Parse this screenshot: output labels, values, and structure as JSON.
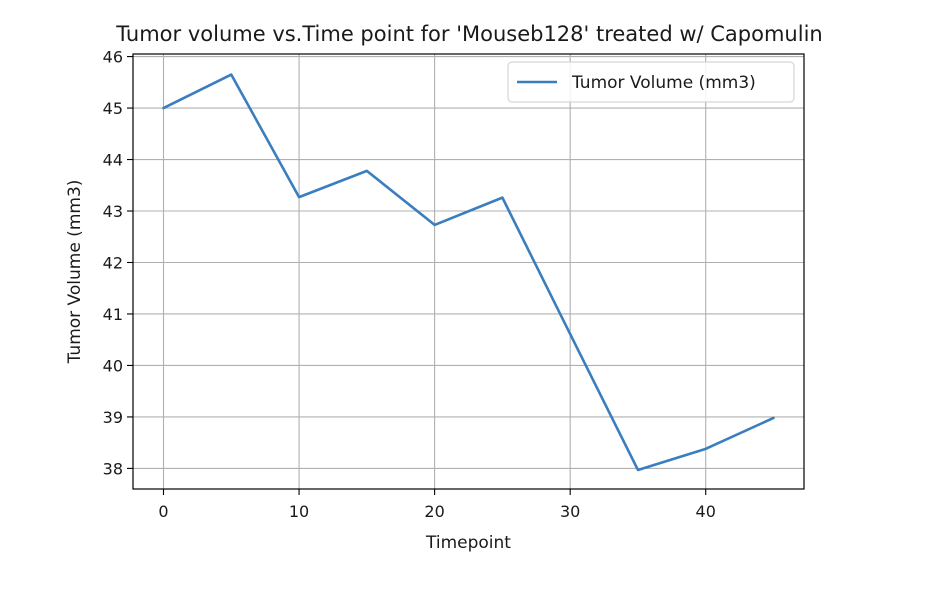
{
  "chart_data": {
    "type": "line",
    "title": "Tumor volume vs.Time point for 'Mouseb128' treated w/ Capomulin",
    "xlabel": "Timepoint",
    "ylabel": "Tumor Volume (mm3)",
    "xlim": [
      -2.25,
      47.25
    ],
    "ylim": [
      37.6,
      46.05
    ],
    "x_ticks": [
      0,
      10,
      20,
      30,
      40
    ],
    "y_ticks": [
      38,
      39,
      40,
      41,
      42,
      43,
      44,
      45,
      46
    ],
    "grid": true,
    "legend_position": "top-right",
    "x": [
      0,
      5,
      10,
      15,
      20,
      25,
      30,
      35,
      40,
      45
    ],
    "series": [
      {
        "name": "Tumor Volume (mm3)",
        "color": "#3a7ebf",
        "values": [
          45.0,
          45.65,
          43.27,
          43.78,
          42.73,
          43.26,
          40.61,
          37.97,
          38.38,
          38.98
        ]
      }
    ]
  }
}
